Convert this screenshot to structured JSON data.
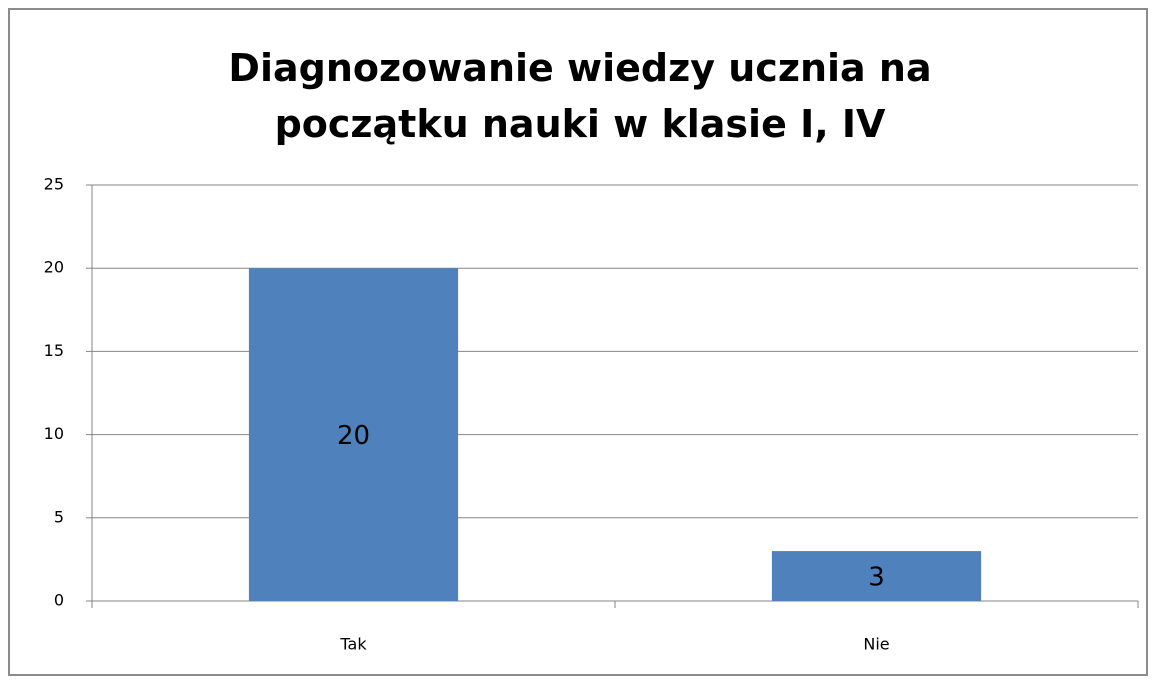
{
  "chart_data": {
    "type": "bar",
    "title": "Diagnozowanie wiedzy ucznia na początku nauki w klasie I, IV",
    "categories": [
      "Tak",
      "Nie"
    ],
    "values": [
      20,
      3
    ],
    "color": "#4f81bd",
    "ylim": [
      0,
      25
    ],
    "yticks": [
      0,
      5,
      10,
      15,
      20,
      25
    ],
    "grid": true
  }
}
